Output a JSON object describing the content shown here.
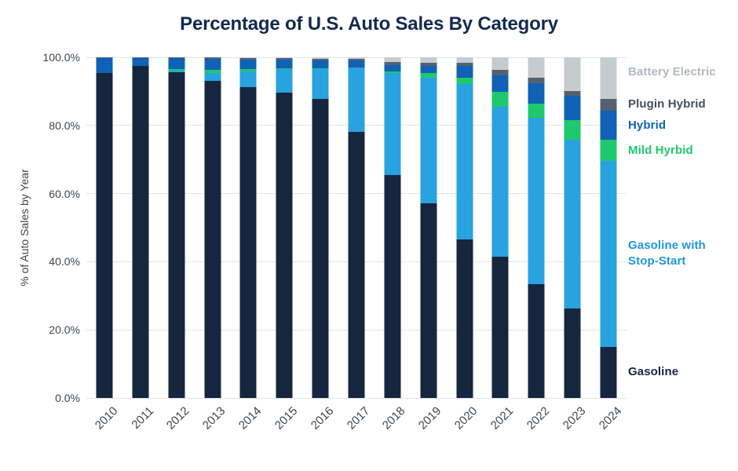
{
  "chart_data": {
    "type": "bar",
    "stacked": true,
    "title": "Percentage of U.S. Auto Sales By Category",
    "xlabel": "",
    "ylabel": "% of Auto Sales by Year",
    "ylim": [
      0,
      100
    ],
    "grid": true,
    "legend_position": "right",
    "yticks": [
      {
        "value": 100,
        "label": "100.0%"
      },
      {
        "value": 80,
        "label": "80.0%"
      },
      {
        "value": 60,
        "label": "60.0%"
      },
      {
        "value": 40,
        "label": "40.0%"
      },
      {
        "value": 20,
        "label": "20.0%"
      },
      {
        "value": 0,
        "label": "0.0%"
      }
    ],
    "categories": [
      "2010",
      "2011",
      "2012",
      "2013",
      "2014",
      "2015",
      "2016",
      "2017",
      "2018",
      "2019",
      "2020",
      "2021",
      "2022",
      "2023",
      "2024"
    ],
    "series": [
      {
        "name": "Gasoline",
        "color": "#16263f",
        "legend_color": "#16263f",
        "values": [
          95.5,
          97.4,
          95.7,
          93.0,
          91.2,
          89.7,
          87.9,
          78.2,
          65.4,
          57.1,
          46.6,
          41.4,
          33.5,
          26.3,
          15.0
        ]
      },
      {
        "name": "Gasoline with Stop-Start",
        "color": "#29a2e0",
        "legend_color": "#2196d9",
        "values": [
          0.0,
          0.0,
          0.4,
          2.5,
          4.7,
          6.9,
          8.7,
          18.7,
          29.9,
          36.9,
          45.6,
          44.2,
          48.7,
          49.4,
          54.6
        ]
      },
      {
        "name": "Mild Hyrbid",
        "color": "#1ec96d",
        "legend_color": "#1ec96d",
        "values": [
          0.0,
          0.0,
          0.4,
          0.8,
          0.7,
          0.1,
          0.1,
          0.2,
          0.6,
          1.3,
          1.9,
          4.2,
          4.3,
          5.8,
          6.1
        ]
      },
      {
        "name": "Hybrid",
        "color": "#0f62b5",
        "legend_color": "#0f62b5",
        "values": [
          4.3,
          2.4,
          3.3,
          3.2,
          2.7,
          2.6,
          2.4,
          2.0,
          1.8,
          2.1,
          3.4,
          5.0,
          5.8,
          7.1,
          8.7
        ]
      },
      {
        "name": "Plugin Hybrid",
        "color": "#55616e",
        "legend_color": "#454f5b",
        "values": [
          0.1,
          0.1,
          0.1,
          0.4,
          0.5,
          0.4,
          0.5,
          0.4,
          1.0,
          0.9,
          1.0,
          1.5,
          1.8,
          1.4,
          3.5
        ]
      },
      {
        "name": "Battery Electric",
        "color": "#c6cbce",
        "legend_color": "#b2b9be",
        "values": [
          0.1,
          0.1,
          0.1,
          0.1,
          0.2,
          0.3,
          0.4,
          0.5,
          1.3,
          1.7,
          1.5,
          3.7,
          5.9,
          10.0,
          12.1
        ]
      }
    ]
  }
}
